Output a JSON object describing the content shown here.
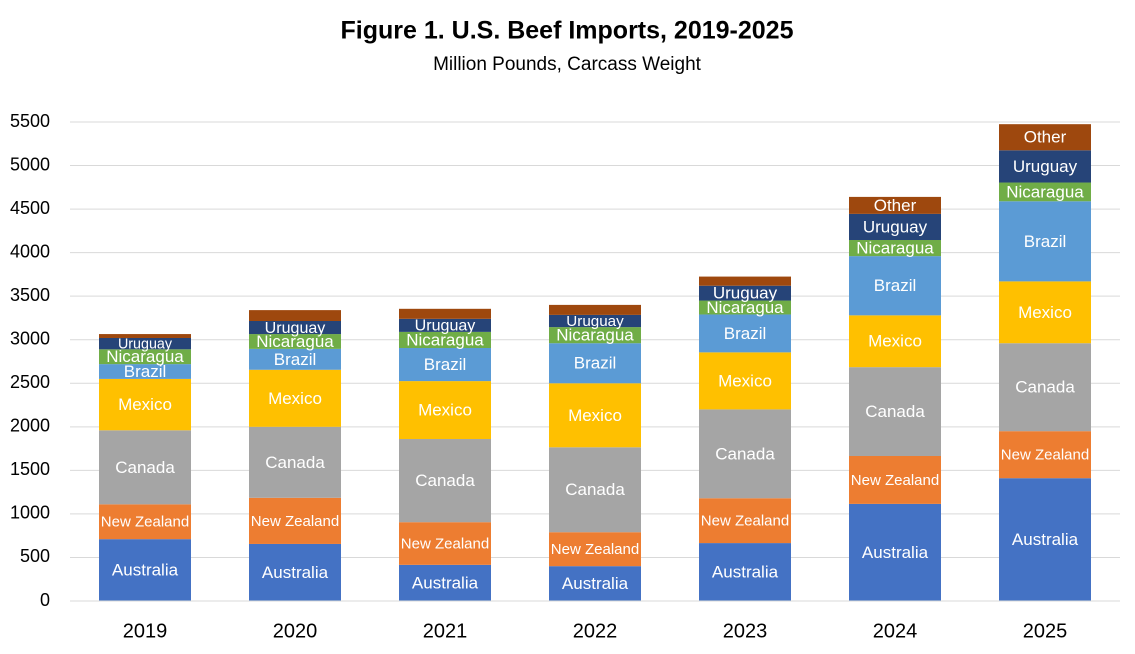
{
  "chart_data": {
    "type": "stacked_bar",
    "title": "Figure 1. U.S. Beef Imports, 2019-2025",
    "subtitle": "Million Pounds, Carcass Weight",
    "categories": [
      "2019",
      "2020",
      "2021",
      "2022",
      "2023",
      "2024",
      "2025"
    ],
    "series": [
      {
        "name": "Australia",
        "color": "#4472c4",
        "values": [
          710,
          655,
          415,
          400,
          665,
          1115,
          1410
        ]
      },
      {
        "name": "New Zealand",
        "color": "#ed7d31",
        "values": [
          400,
          530,
          490,
          390,
          515,
          550,
          540
        ]
      },
      {
        "name": "Canada",
        "color": "#a5a5a5",
        "values": [
          850,
          815,
          955,
          975,
          1020,
          1020,
          1010
        ]
      },
      {
        "name": "Mexico",
        "color": "#ffc000",
        "values": [
          590,
          655,
          665,
          735,
          655,
          595,
          710
        ]
      },
      {
        "name": "Brazil",
        "color": "#5b9bd5",
        "values": [
          170,
          240,
          380,
          460,
          435,
          680,
          920
        ]
      },
      {
        "name": "Nicaragua",
        "color": "#70ad47",
        "values": [
          170,
          170,
          185,
          185,
          160,
          185,
          215
        ]
      },
      {
        "name": "Uruguay",
        "color": "#264478",
        "values": [
          130,
          150,
          150,
          140,
          170,
          300,
          370
        ]
      },
      {
        "name": "Other",
        "color": "#9e480e",
        "values": [
          45,
          125,
          115,
          115,
          105,
          195,
          300
        ]
      }
    ],
    "ylim": [
      0,
      5500
    ],
    "yticks": [
      0,
      500,
      1000,
      1500,
      2000,
      2500,
      3000,
      3500,
      4000,
      4500,
      5000,
      5500
    ],
    "grid": true
  }
}
